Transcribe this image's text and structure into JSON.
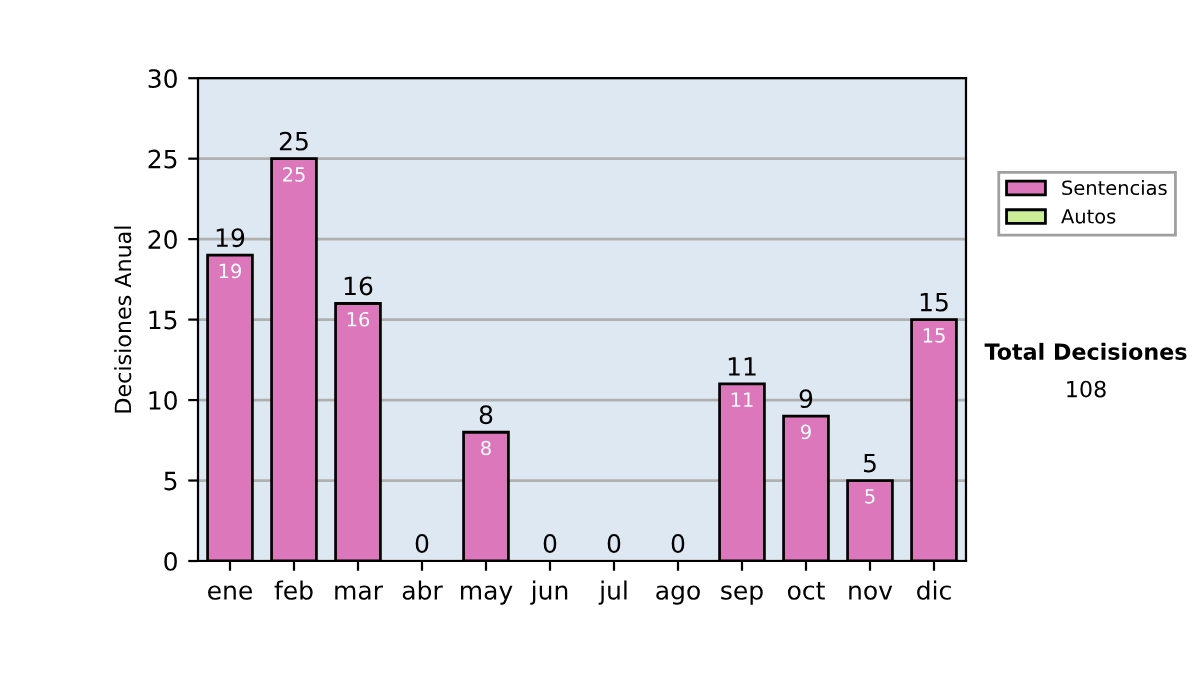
{
  "chart_data": {
    "type": "bar",
    "ylabel": "Decisiones Anual",
    "categories": [
      "ene",
      "feb",
      "mar",
      "abr",
      "may",
      "jun",
      "jul",
      "ago",
      "sep",
      "oct",
      "nov",
      "dic"
    ],
    "series": [
      {
        "name": "Sentencias",
        "color": "#dd77bb",
        "values": [
          19,
          25,
          16,
          0,
          8,
          0,
          0,
          0,
          11,
          9,
          5,
          15
        ],
        "value_labels": [
          "19",
          "25",
          "16",
          null,
          "8",
          null,
          null,
          null,
          "11",
          "9",
          "5",
          "15"
        ]
      },
      {
        "name": "Autos",
        "color": "#ccee99",
        "values": [
          0,
          0,
          0,
          0,
          0,
          0,
          0,
          0,
          0,
          0,
          0,
          0
        ]
      }
    ],
    "stacked": true,
    "totals": [
      "19",
      "25",
      "16",
      "0",
      "8",
      "0",
      "0",
      "0",
      "11",
      "9",
      "5",
      "15"
    ],
    "ylim": [
      0,
      30
    ],
    "yticks": [
      0,
      5,
      10,
      15,
      20,
      25,
      30
    ],
    "grid": "y",
    "legend": "right",
    "annotations": [
      "Total Decisiones",
      "108"
    ]
  }
}
